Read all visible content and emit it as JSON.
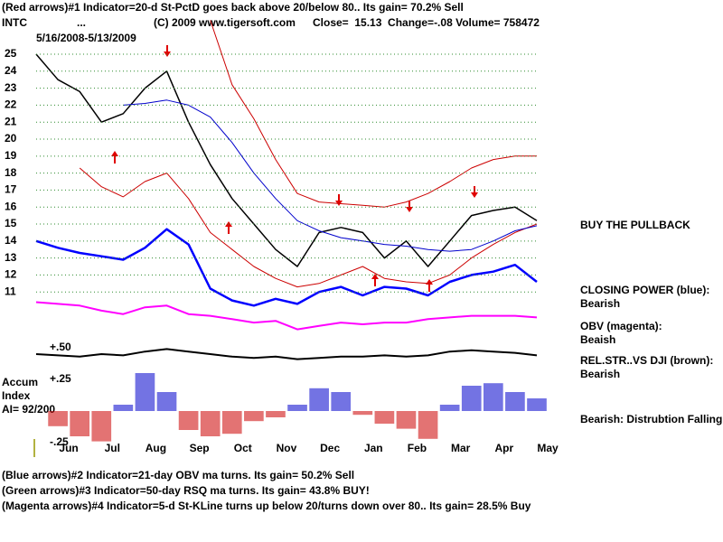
{
  "header": {
    "line1": "(Red arrows)#1 Indicator=20-d St-PctD goes back above 20/below 80.. Its gain= 70.2% Sell",
    "ticker": "INTC",
    "dots": "...",
    "copyright": "(C) 2009 www.tigersoft.com",
    "quote": "Close=  15.13  Change=-.08 Volume= 758472",
    "date_range": "5/16/2008-5/13/2009"
  },
  "notes": {
    "buy": "BUY THE PULLBACK",
    "closing_power": "CLOSING POWER (blue):",
    "closing_power_status": "Bearish",
    "obv": "OBV (magenta):",
    "obv_status": "Beaish",
    "rel_str": "REL.STR..VS DJI (brown):",
    "rel_str_status": "Bearish",
    "accum_status": "Bearish: Distrubtion Falling.",
    "accum_label1": "Accum",
    "accum_label2": "Index",
    "accum_ai": "AI= 92/200"
  },
  "footer": [
    "(Blue arrows)#2 Indicator=21-day OBV ma turns. Its gain= 50.2% Sell",
    "(Green arrows)#3 Indicator=50-day RSQ ma turns. Its gain= 43.8% BUY!",
    "(Magenta arrows)#4 Indicator=5-d St-KLine turns up below 20/turns down over 80.. Its gain= 28.5% Buy"
  ],
  "chart_data": [
    {
      "type": "line",
      "ylim": [
        8.3,
        25.5
      ],
      "yticks": [
        11,
        12,
        13,
        14,
        15,
        16,
        17,
        18,
        19,
        20,
        21,
        22,
        23,
        24,
        25
      ],
      "grid": true,
      "series": [
        {
          "color": "#000000",
          "width": 1.5,
          "values": [
            25,
            23.5,
            22.8,
            21,
            21.5,
            23,
            24,
            21,
            18.5,
            16.5,
            15,
            13.5,
            12.5,
            14.5,
            14.8,
            14.5,
            13,
            14,
            12.5,
            14,
            15.5,
            15.8,
            16,
            15.2
          ]
        },
        {
          "color": "#cc0000",
          "width": 1,
          "values": [
            null,
            null,
            null,
            null,
            null,
            null,
            null,
            null,
            27,
            23.2,
            21.2,
            18.8,
            16.8,
            16.3,
            16.2,
            16.1,
            16,
            16.3,
            16.8,
            17.5,
            18.3,
            18.8,
            19,
            19
          ]
        },
        {
          "color": "#cc0000",
          "width": 1,
          "values": [
            null,
            null,
            18.3,
            17.2,
            16.6,
            17.5,
            18,
            16.5,
            14.5,
            13.5,
            12.5,
            11.8,
            11.3,
            11.5,
            12,
            12.5,
            11.8,
            11.6,
            11.5,
            12,
            13,
            13.8,
            14.5,
            15
          ]
        },
        {
          "color": "#0000cc",
          "width": 1,
          "values": [
            null,
            null,
            null,
            null,
            22,
            22.1,
            22.3,
            22,
            21.3,
            19.8,
            18,
            16.5,
            15.2,
            14.6,
            14.2,
            14,
            13.8,
            13.7,
            13.5,
            13.4,
            13.5,
            14,
            14.6,
            14.9
          ]
        },
        {
          "color": "#0000ff",
          "width": 2.5,
          "values": [
            14,
            13.6,
            13.3,
            13.1,
            12.9,
            13.6,
            14.7,
            13.8,
            11.2,
            10.5,
            10.2,
            10.6,
            10.3,
            11,
            11.3,
            10.8,
            11.3,
            11.2,
            10.8,
            11.6,
            12,
            12.2,
            12.6,
            11.6
          ]
        },
        {
          "color": "#ff00ff",
          "width": 2,
          "values": [
            10.4,
            10.3,
            10.2,
            9.9,
            9.7,
            10.1,
            10.2,
            9.7,
            9.6,
            9.4,
            9.2,
            9.3,
            8.8,
            9,
            9.2,
            9.1,
            9.2,
            9.2,
            9.4,
            9.5,
            9.6,
            9.6,
            9.6,
            9.5
          ]
        }
      ]
    },
    {
      "type": "bar",
      "ylim": [
        -0.25,
        0.5
      ],
      "yticks": [
        {
          "value": 0.5,
          "label": "+.50"
        },
        {
          "value": 0.25,
          "label": "+.25"
        },
        {
          "value": -0.25,
          "label": "-.25"
        }
      ],
      "categories": [
        null,
        "Jun",
        null,
        "Jul",
        null,
        "Aug",
        null,
        "Sep",
        null,
        "Oct",
        null,
        "Nov",
        null,
        "Dec",
        null,
        "Jan",
        null,
        "Feb",
        null,
        "Mar",
        null,
        "Apr",
        null,
        "May"
      ],
      "positive_color": "#0000cc",
      "negative_color": "#cc0000",
      "values": [
        0,
        -0.12,
        -0.2,
        -0.24,
        0.05,
        0.3,
        0.15,
        -0.15,
        -0.2,
        -0.18,
        -0.08,
        -0.05,
        0.05,
        0.18,
        0.15,
        -0.03,
        -0.1,
        -0.14,
        -0.22,
        0.05,
        0.2,
        0.22,
        0.15,
        0.1
      ],
      "series": [
        {
          "color": "#000000",
          "width": 2,
          "values": [
            0.45,
            0.44,
            0.43,
            0.45,
            0.44,
            0.47,
            0.49,
            0.47,
            0.45,
            0.43,
            0.42,
            0.43,
            0.41,
            0.42,
            0.43,
            0.43,
            0.44,
            0.43,
            0.44,
            0.47,
            0.48,
            0.47,
            0.46,
            0.44
          ]
        }
      ]
    }
  ]
}
